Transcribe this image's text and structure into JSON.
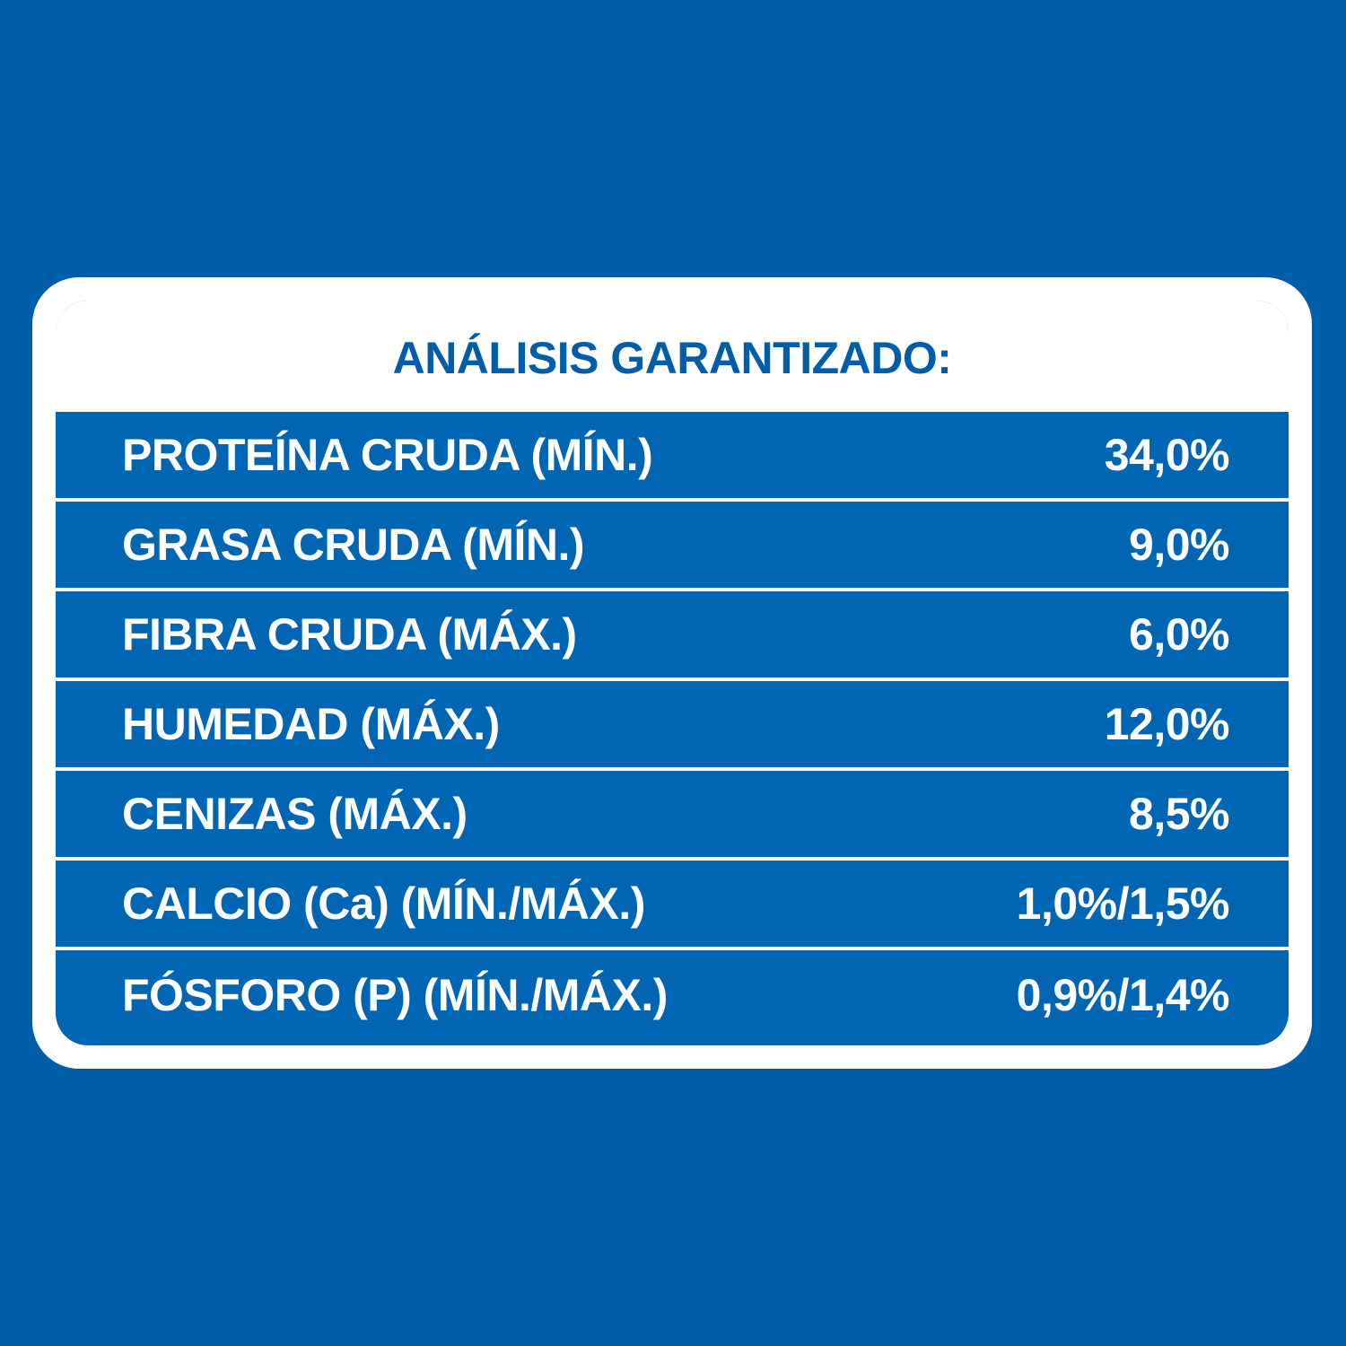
{
  "title": "ANÁLISIS GARANTIZADO:",
  "rows": [
    {
      "label": "PROTEÍNA CRUDA (MÍN.)",
      "value": "34,0%"
    },
    {
      "label": "GRASA CRUDA (MÍN.)",
      "value": "9,0%"
    },
    {
      "label": "FIBRA CRUDA (MÁX.)",
      "value": "6,0%"
    },
    {
      "label": "HUMEDAD (MÁX.)",
      "value": "12,0%"
    },
    {
      "label": "CENIZAS (MÁX.)",
      "value": "8,5%"
    },
    {
      "label": "CALCIO (Ca) (MÍN./MÁX.)",
      "value": "1,0%/1,5%"
    },
    {
      "label": "FÓSFORO (P) (MÍN./MÁX.)",
      "value": "0,9%/1,4%"
    }
  ],
  "colors": {
    "background": "#005ea9",
    "table_fill": "#0065b3",
    "border": "#ffffff",
    "title_text": "#005ea9",
    "row_text": "#ffffff"
  }
}
